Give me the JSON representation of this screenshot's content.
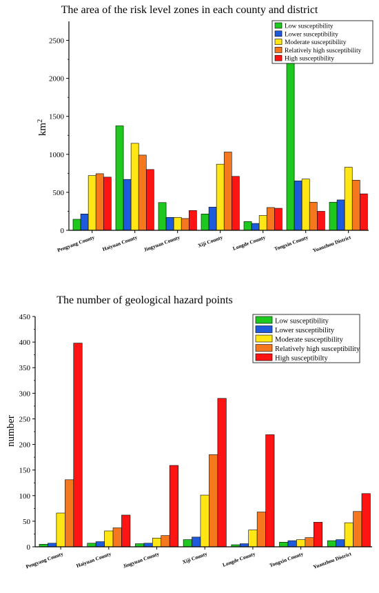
{
  "colors": [
    "#1ec81e",
    "#1e5adc",
    "#ffe614",
    "#f5781e",
    "#ff1414"
  ],
  "chart_data": [
    {
      "type": "bar",
      "title": "The area of the risk level zones in each county and district",
      "ylabel": "km",
      "ylabel_sup": "2",
      "ylim": [
        0,
        2750
      ],
      "yticks": [
        0,
        500,
        1000,
        1500,
        2000,
        2500
      ],
      "grid": false,
      "legend_position": "top-right",
      "categories": [
        "Pengyang County",
        "Haiyuan County",
        "Jingyuan County",
        "Xiji County",
        "Longde County",
        "Tongxin County",
        "Yuanzhou District"
      ],
      "series": [
        {
          "name": "Low susceptibility",
          "values": [
            145,
            1375,
            365,
            215,
            115,
            2490,
            370
          ]
        },
        {
          "name": "Lower susceptibility",
          "values": [
            215,
            670,
            170,
            305,
            90,
            650,
            400
          ]
        },
        {
          "name": "Moderate susceptibility",
          "values": [
            720,
            1145,
            170,
            870,
            195,
            675,
            830
          ]
        },
        {
          "name": "Relatively high susceptibility",
          "values": [
            745,
            990,
            155,
            1030,
            300,
            370,
            660
          ]
        },
        {
          "name": "High susceptibility",
          "values": [
            700,
            800,
            260,
            710,
            290,
            250,
            480
          ]
        }
      ]
    },
    {
      "type": "bar",
      "title": "The number of geological hazard points",
      "ylabel": "number",
      "ylim": [
        0,
        450
      ],
      "yticks": [
        0,
        50,
        100,
        150,
        200,
        250,
        300,
        350,
        400,
        450
      ],
      "grid": false,
      "legend_position": "top-right",
      "categories": [
        "Pengyang County",
        "Haiyuan County",
        "Jingyuan County",
        "Xiji County",
        "Longde County",
        "Tongxin County",
        "Yuanzhou District"
      ],
      "series": [
        {
          "name": "Low susceptibility",
          "values": [
            5,
            7,
            6,
            14,
            4,
            9,
            12
          ]
        },
        {
          "name": "Lower susceptibility",
          "values": [
            7,
            10,
            7,
            19,
            6,
            12,
            14
          ]
        },
        {
          "name": "Moderate susceptibility",
          "values": [
            66,
            31,
            17,
            101,
            33,
            14,
            47
          ]
        },
        {
          "name": "Relatively high susceptibility",
          "values": [
            131,
            37,
            22,
            180,
            68,
            18,
            69
          ]
        },
        {
          "name": "High susceptibilty",
          "values": [
            398,
            62,
            159,
            290,
            219,
            48,
            104
          ]
        }
      ]
    }
  ]
}
